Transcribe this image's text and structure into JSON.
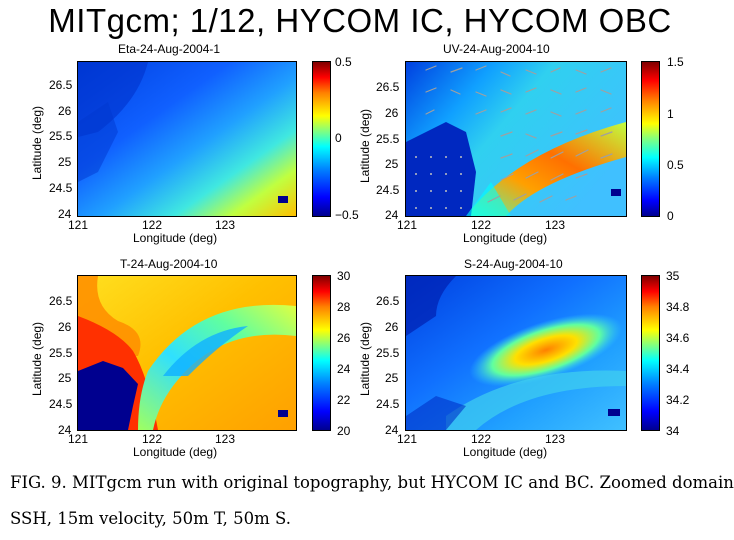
{
  "slide_title": "MITgcm; 1/12, HYCOM IC, HYCOM OBC",
  "figure": {
    "common": {
      "xlabel": "Longitude (deg)",
      "ylabel": "Latitude (deg)",
      "xticks": [
        "121",
        "122",
        "123"
      ],
      "yticks": [
        "26.5",
        "26",
        "25.5",
        "25",
        "24.5",
        "24"
      ]
    },
    "panels": [
      {
        "id": "eta",
        "title": "Eta-24-Aug-2004-1",
        "colorbar_ticks": [
          "0.5",
          "0",
          "−0.5"
        ]
      },
      {
        "id": "uv",
        "title": "UV-24-Aug-2004-10",
        "colorbar_ticks": [
          "1.5",
          "1",
          "0.5",
          "0"
        ]
      },
      {
        "id": "t",
        "title": "T-24-Aug-2004-10",
        "colorbar_ticks": [
          "30",
          "28",
          "26",
          "24",
          "22",
          "20"
        ]
      },
      {
        "id": "s",
        "title": "S-24-Aug-2004-10",
        "colorbar_ticks": [
          "35",
          "34.8",
          "34.6",
          "34.4",
          "34.2",
          "34"
        ]
      }
    ]
  },
  "caption": {
    "line1": "FIG. 9. MITgcm run with original topography, but HYCOM IC and BC. Zoomed domain",
    "line2": "SSH, 15m velocity, 50m T, 50m S."
  },
  "colors": {
    "jet_dark_blue": "#00008f",
    "jet_blue": "#0050ff",
    "jet_cyan": "#00ffff",
    "jet_yellow": "#ffff00",
    "jet_orange": "#ff8000",
    "jet_dark_red": "#800000",
    "land": "#00008f",
    "vector": "#a0a0a0"
  }
}
